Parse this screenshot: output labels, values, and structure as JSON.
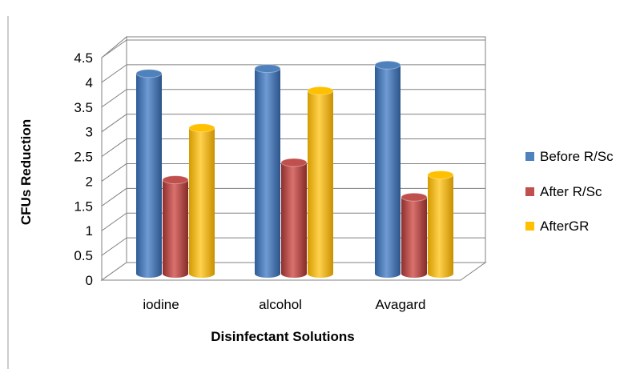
{
  "chart_data": {
    "type": "bar",
    "style": "3d-cylinder",
    "categories": [
      "iodine",
      "alcohol",
      "Avagard"
    ],
    "series": [
      {
        "name": "Before R/Sc",
        "color": "#4F81BD",
        "values": [
          4.05,
          4.15,
          4.22
        ]
      },
      {
        "name": "After R/Sc",
        "color": "#C0504D",
        "values": [
          1.9,
          2.25,
          1.55
        ]
      },
      {
        "name": "AfterGR",
        "color": "#FFC000",
        "values": [
          2.95,
          3.7,
          2.0
        ]
      }
    ],
    "title": "",
    "xlabel": "Disinfectant Solutions",
    "ylabel": "CFUs Reduction",
    "ylim": [
      0,
      4.5
    ],
    "yticks": [
      "0",
      "0.5",
      "1",
      "1.5",
      "2",
      "2.5",
      "3",
      "3.5",
      "4",
      "4.5"
    ],
    "grid": true,
    "legend_position": "right"
  }
}
